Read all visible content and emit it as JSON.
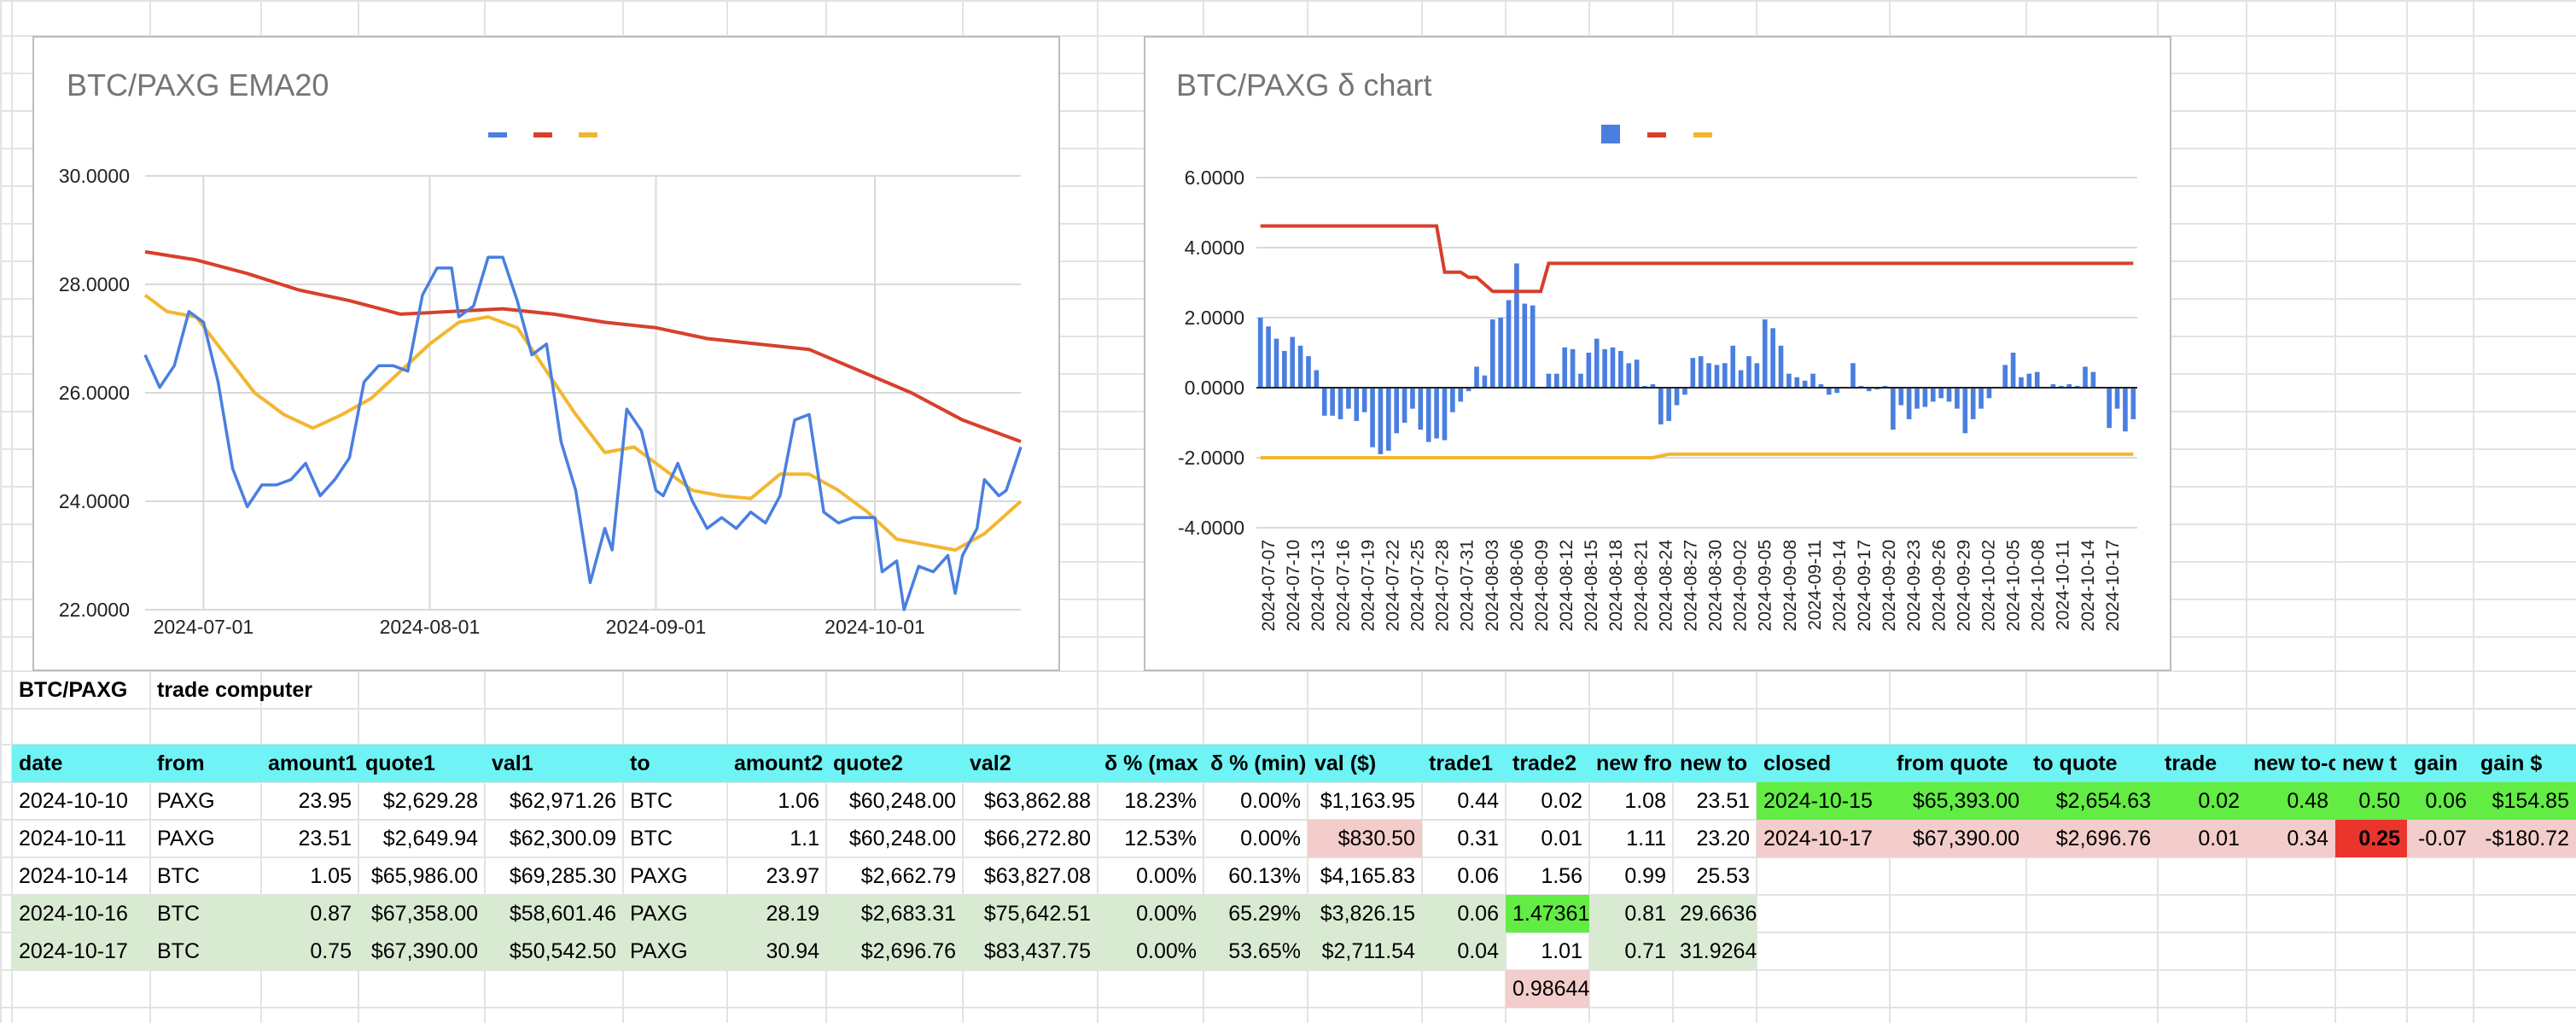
{
  "colors": {
    "header_fill": "#6ff3f5",
    "light_green": "#d9ead3",
    "bright_green": "#62ec44",
    "pink": "#f2cdcb",
    "bright_red": "#e9352c",
    "series_blue": "#4a7fe0",
    "series_red": "#d7402c",
    "series_yellow": "#f2b731"
  },
  "sheet": {
    "title": "BTC/PAXG",
    "subtitle": "trade computer",
    "headers": [
      "date",
      "from",
      "amount1",
      "quote1",
      "val1",
      "to",
      "amount2",
      "quote2",
      "val2",
      "δ % (max",
      "δ % (min)",
      "val ($)",
      "trade1",
      "trade2",
      "new fro",
      "new to",
      "closed",
      "from quote",
      "to quote",
      "trade",
      "new to-c",
      "new t",
      "gain",
      "gain $"
    ],
    "rows": [
      [
        "2024-10-10",
        "PAXG",
        "23.95",
        "$2,629.28",
        "$62,971.26",
        "BTC",
        "1.06",
        "$60,248.00",
        "$63,862.88",
        "18.23%",
        "0.00%",
        "$1,163.95",
        "0.44",
        "0.02",
        "1.08",
        "23.51",
        "2024-10-15",
        "$65,393.00",
        "$2,654.63",
        "0.02",
        "0.48",
        "0.50",
        "0.06",
        "$154.85"
      ],
      [
        "2024-10-11",
        "PAXG",
        "23.51",
        "$2,649.94",
        "$62,300.09",
        "BTC",
        "1.1",
        "$60,248.00",
        "$66,272.80",
        "12.53%",
        "0.00%",
        "$830.50",
        "0.31",
        "0.01",
        "1.11",
        "23.20",
        "2024-10-17",
        "$67,390.00",
        "$2,696.76",
        "0.01",
        "0.34",
        "0.25",
        "-0.07",
        "-$180.72"
      ],
      [
        "2024-10-14",
        "BTC",
        "1.05",
        "$65,986.00",
        "$69,285.30",
        "PAXG",
        "23.97",
        "$2,662.79",
        "$63,827.08",
        "0.00%",
        "60.13%",
        "$4,165.83",
        "0.06",
        "1.56",
        "0.99",
        "25.53",
        "",
        "",
        "",
        "",
        "",
        "",
        "",
        ""
      ],
      [
        "2024-10-16",
        "BTC",
        "0.87",
        "$67,358.00",
        "$58,601.46",
        "PAXG",
        "28.19",
        "$2,683.31",
        "$75,642.51",
        "0.00%",
        "65.29%",
        "$3,826.15",
        "0.06",
        "1.47361",
        "0.81",
        "29.6636",
        "",
        "",
        "",
        "",
        "",
        "",
        "",
        ""
      ],
      [
        "2024-10-17",
        "BTC",
        "0.75",
        "$67,390.00",
        "$50,542.50",
        "PAXG",
        "30.94",
        "$2,696.76",
        "$83,437.75",
        "0.00%",
        "53.65%",
        "$2,711.54",
        "0.04",
        "1.01",
        "0.71",
        "31.9264",
        "",
        "",
        "",
        "",
        "",
        "",
        "",
        ""
      ]
    ],
    "extra_cell": "0.98644"
  },
  "chart_data": [
    {
      "type": "line",
      "title": "BTC/PAXG EMA20",
      "x_range": [
        "2024-06-23",
        "2024-10-21"
      ],
      "ylim": [
        22,
        30
      ],
      "yticks": [
        "30.0000",
        "28.0000",
        "26.0000",
        "24.0000",
        "22.0000"
      ],
      "xticks": [
        "2024-07-01",
        "2024-08-01",
        "2024-09-01",
        "2024-10-01"
      ],
      "legend": "top",
      "grid": true,
      "series": [
        {
          "color": "#4a7fe0",
          "points": [
            [
              "2024-06-23",
              26.7
            ],
            [
              "2024-06-25",
              26.1
            ],
            [
              "2024-06-27",
              26.5
            ],
            [
              "2024-06-29",
              27.5
            ],
            [
              "2024-07-01",
              27.3
            ],
            [
              "2024-07-03",
              26.2
            ],
            [
              "2024-07-05",
              24.6
            ],
            [
              "2024-07-07",
              23.9
            ],
            [
              "2024-07-09",
              24.3
            ],
            [
              "2024-07-11",
              24.3
            ],
            [
              "2024-07-13",
              24.4
            ],
            [
              "2024-07-15",
              24.7
            ],
            [
              "2024-07-17",
              24.1
            ],
            [
              "2024-07-19",
              24.4
            ],
            [
              "2024-07-21",
              24.8
            ],
            [
              "2024-07-23",
              26.2
            ],
            [
              "2024-07-25",
              26.5
            ],
            [
              "2024-07-27",
              26.5
            ],
            [
              "2024-07-29",
              26.4
            ],
            [
              "2024-07-31",
              27.8
            ],
            [
              "2024-08-02",
              28.3
            ],
            [
              "2024-08-04",
              28.3
            ],
            [
              "2024-08-05",
              27.4
            ],
            [
              "2024-08-07",
              27.6
            ],
            [
              "2024-08-09",
              28.5
            ],
            [
              "2024-08-11",
              28.5
            ],
            [
              "2024-08-13",
              27.7
            ],
            [
              "2024-08-15",
              26.7
            ],
            [
              "2024-08-17",
              26.9
            ],
            [
              "2024-08-19",
              25.1
            ],
            [
              "2024-08-21",
              24.2
            ],
            [
              "2024-08-23",
              22.5
            ],
            [
              "2024-08-25",
              23.5
            ],
            [
              "2024-08-26",
              23.1
            ],
            [
              "2024-08-28",
              25.7
            ],
            [
              "2024-08-30",
              25.3
            ],
            [
              "2024-09-01",
              24.2
            ],
            [
              "2024-09-02",
              24.1
            ],
            [
              "2024-09-04",
              24.7
            ],
            [
              "2024-09-06",
              24.0
            ],
            [
              "2024-09-08",
              23.5
            ],
            [
              "2024-09-10",
              23.7
            ],
            [
              "2024-09-12",
              23.5
            ],
            [
              "2024-09-14",
              23.8
            ],
            [
              "2024-09-16",
              23.6
            ],
            [
              "2024-09-18",
              24.1
            ],
            [
              "2024-09-20",
              25.5
            ],
            [
              "2024-09-22",
              25.6
            ],
            [
              "2024-09-24",
              23.8
            ],
            [
              "2024-09-26",
              23.6
            ],
            [
              "2024-09-28",
              23.7
            ],
            [
              "2024-10-01",
              23.7
            ],
            [
              "2024-10-02",
              22.7
            ],
            [
              "2024-10-04",
              22.9
            ],
            [
              "2024-10-05",
              22.0
            ],
            [
              "2024-10-07",
              22.8
            ],
            [
              "2024-10-09",
              22.7
            ],
            [
              "2024-10-11",
              23.0
            ],
            [
              "2024-10-12",
              22.3
            ],
            [
              "2024-10-13",
              23.0
            ],
            [
              "2024-10-15",
              23.5
            ],
            [
              "2024-10-16",
              24.4
            ],
            [
              "2024-10-18",
              24.1
            ],
            [
              "2024-10-19",
              24.2
            ],
            [
              "2024-10-21",
              25.0
            ]
          ]
        },
        {
          "color": "#d7402c",
          "points": [
            [
              "2024-06-23",
              28.6
            ],
            [
              "2024-06-30",
              28.45
            ],
            [
              "2024-07-07",
              28.2
            ],
            [
              "2024-07-14",
              27.9
            ],
            [
              "2024-07-21",
              27.7
            ],
            [
              "2024-07-28",
              27.45
            ],
            [
              "2024-08-04",
              27.5
            ],
            [
              "2024-08-11",
              27.55
            ],
            [
              "2024-08-18",
              27.45
            ],
            [
              "2024-08-25",
              27.3
            ],
            [
              "2024-09-01",
              27.2
            ],
            [
              "2024-09-08",
              27.0
            ],
            [
              "2024-09-15",
              26.9
            ],
            [
              "2024-09-22",
              26.8
            ],
            [
              "2024-09-29",
              26.4
            ],
            [
              "2024-10-06",
              26.0
            ],
            [
              "2024-10-13",
              25.5
            ],
            [
              "2024-10-21",
              25.1
            ]
          ]
        },
        {
          "color": "#f2b731",
          "points": [
            [
              "2024-06-23",
              27.8
            ],
            [
              "2024-06-26",
              27.5
            ],
            [
              "2024-06-30",
              27.4
            ],
            [
              "2024-07-04",
              26.7
            ],
            [
              "2024-07-08",
              26.0
            ],
            [
              "2024-07-12",
              25.6
            ],
            [
              "2024-07-16",
              25.35
            ],
            [
              "2024-07-20",
              25.6
            ],
            [
              "2024-07-24",
              25.9
            ],
            [
              "2024-07-28",
              26.4
            ],
            [
              "2024-08-01",
              26.9
            ],
            [
              "2024-08-05",
              27.3
            ],
            [
              "2024-08-09",
              27.4
            ],
            [
              "2024-08-13",
              27.2
            ],
            [
              "2024-08-17",
              26.4
            ],
            [
              "2024-08-21",
              25.6
            ],
            [
              "2024-08-25",
              24.9
            ],
            [
              "2024-08-29",
              25.0
            ],
            [
              "2024-09-02",
              24.6
            ],
            [
              "2024-09-06",
              24.2
            ],
            [
              "2024-09-10",
              24.1
            ],
            [
              "2024-09-14",
              24.05
            ],
            [
              "2024-09-18",
              24.5
            ],
            [
              "2024-09-22",
              24.5
            ],
            [
              "2024-09-26",
              24.2
            ],
            [
              "2024-09-30",
              23.8
            ],
            [
              "2024-10-04",
              23.3
            ],
            [
              "2024-10-08",
              23.2
            ],
            [
              "2024-10-12",
              23.1
            ],
            [
              "2024-10-16",
              23.4
            ],
            [
              "2024-10-21",
              24.0
            ]
          ]
        }
      ]
    },
    {
      "type": "bar",
      "title": "BTC/PAXG δ chart",
      "ylim": [
        -4,
        7
      ],
      "yticks": [
        "6.0000",
        "4.0000",
        "2.0000",
        "0.0000",
        "-2.0000",
        "-4.0000"
      ],
      "tick_labels": [
        "2024-07-07",
        "2024-07-10",
        "2024-07-13",
        "2024-07-16",
        "2024-07-19",
        "2024-07-22",
        "2024-07-25",
        "2024-07-28",
        "2024-07-31",
        "2024-08-03",
        "2024-08-06",
        "2024-08-09",
        "2024-08-12",
        "2024-08-15",
        "2024-08-18",
        "2024-08-21",
        "2024-08-24",
        "2024-08-27",
        "2024-08-30",
        "2024-09-02",
        "2024-09-05",
        "2024-09-08",
        "2024-09-11",
        "2024-09-14",
        "2024-09-17",
        "2024-09-20",
        "2024-09-23",
        "2024-09-26",
        "2024-09-29",
        "2024-10-02",
        "2024-10-05",
        "2024-10-08",
        "2024-10-11",
        "2024-10-14",
        "2024-10-17"
      ],
      "legend": "top",
      "grid": true,
      "bars": {
        "color": "#4a7fe0",
        "values": [
          2.0,
          1.75,
          1.4,
          1.05,
          1.45,
          1.2,
          0.9,
          0.5,
          -0.8,
          -0.8,
          -0.9,
          -0.6,
          -0.95,
          -0.7,
          -1.7,
          -1.9,
          -1.8,
          -1.3,
          -1.0,
          -0.6,
          -1.2,
          -1.55,
          -1.45,
          -1.5,
          -0.7,
          -0.4,
          -0.1,
          0.6,
          0.35,
          1.95,
          2.0,
          2.5,
          3.55,
          2.4,
          2.35,
          0.0,
          0.4,
          0.4,
          1.15,
          1.1,
          0.4,
          1.0,
          1.4,
          1.1,
          1.15,
          1.05,
          0.7,
          0.8,
          0.05,
          0.1,
          -1.05,
          -0.95,
          -0.5,
          -0.2,
          0.85,
          0.9,
          0.7,
          0.65,
          0.7,
          1.2,
          0.5,
          0.9,
          0.7,
          1.95,
          1.7,
          1.2,
          0.4,
          0.3,
          0.2,
          0.4,
          0.1,
          -0.2,
          -0.15,
          0.0,
          0.7,
          0.05,
          -0.1,
          -0.05,
          0.05,
          -1.2,
          -0.5,
          -0.9,
          -0.6,
          -0.55,
          -0.4,
          -0.3,
          -0.4,
          -0.6,
          -1.3,
          -0.9,
          -0.6,
          -0.3,
          0.0,
          0.65,
          1.0,
          0.3,
          0.4,
          0.45,
          0.0,
          0.1,
          0.05,
          0.1,
          0.05,
          0.6,
          0.45,
          0.0,
          -1.15,
          -0.6,
          -1.25,
          -0.9
        ]
      },
      "red_line": {
        "color": "#d7402c",
        "points": [
          [
            0,
            4.62
          ],
          [
            12,
            4.62
          ],
          [
            22,
            4.62
          ],
          [
            23,
            3.3
          ],
          [
            25,
            3.3
          ],
          [
            26,
            3.15
          ],
          [
            27,
            3.15
          ],
          [
            29,
            2.75
          ],
          [
            31,
            2.75
          ],
          [
            35,
            2.75
          ],
          [
            36,
            3.55
          ],
          [
            109,
            3.55
          ]
        ]
      },
      "yellow_line": {
        "color": "#f2b731",
        "points": [
          [
            0,
            -2.0
          ],
          [
            49,
            -2.0
          ],
          [
            51,
            -1.9
          ],
          [
            109,
            -1.9
          ]
        ]
      }
    }
  ]
}
